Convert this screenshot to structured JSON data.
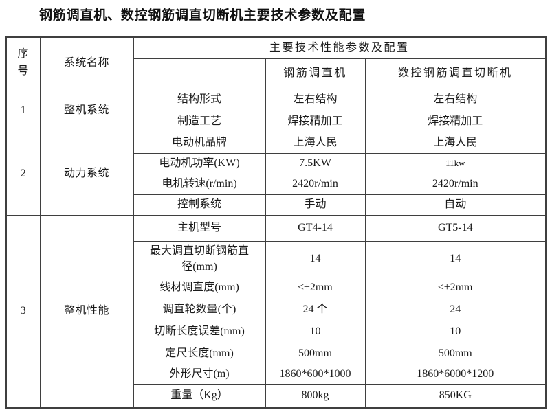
{
  "title": "钢筋调直机、数控钢筋调直切断机主要技术参数及配置",
  "table": {
    "header": {
      "col_serial": "序号",
      "col_system": "系统名称",
      "col_params_span": "主要技术性能参数及配置",
      "col_machine1": "钢筋调直机",
      "col_machine2": "数控钢筋调直切断机"
    },
    "groups": [
      {
        "serial": "1",
        "system": "整机系统",
        "rows": [
          {
            "param": "结构形式",
            "m1": "左右结构",
            "m2": "左右结构"
          },
          {
            "param": "制造工艺",
            "m1": "焊接精加工",
            "m2": "焊接精加工"
          }
        ]
      },
      {
        "serial": "2",
        "system": "动力系统",
        "rows": [
          {
            "param": "电动机品牌",
            "m1": "上海人民",
            "m2": "上海人民"
          },
          {
            "param": "电动机功率(KW)",
            "m1": "7.5KW",
            "m2": "11kw",
            "m2_small": true
          },
          {
            "param": "电机转速(r/min)",
            "m1": "2420r/min",
            "m2": "2420r/min"
          },
          {
            "param": "控制系统",
            "m1": "手动",
            "m2": "自动"
          }
        ]
      },
      {
        "serial": "3",
        "system": "整机性能",
        "rows": [
          {
            "param": "主机型号",
            "m1": "GT4-14",
            "m2": "GT5-14"
          },
          {
            "param": "最大调直切断钢筋直径(mm)",
            "m1": "14",
            "m2": "14"
          },
          {
            "param": "线材调直度(mm)",
            "m1": "≤±2mm",
            "m2": "≤±2mm"
          },
          {
            "param": "调直轮数量(个)",
            "m1": "24 个",
            "m2": "24"
          },
          {
            "param": "切断长度误差(mm)",
            "m1": "10",
            "m2": "10"
          },
          {
            "param": "定尺长度(mm)",
            "m1": "500mm",
            "m2": "500mm"
          },
          {
            "param": "外形尺寸(m)",
            "m1": "1860*600*1000",
            "m2": "1860*6000*1200"
          },
          {
            "param": "重量（Kg）",
            "m1": "800kg",
            "m2": "850KG"
          }
        ]
      }
    ]
  }
}
